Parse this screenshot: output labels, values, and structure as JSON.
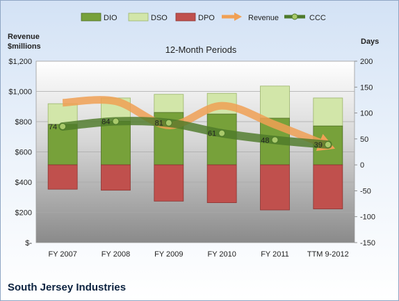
{
  "legend": [
    "DIO",
    "DSO",
    "DPO",
    "Revenue",
    "CCC"
  ],
  "colors": {
    "dio": "#77a13a",
    "dso": "#d2e6a9",
    "dpo": "#c0504d",
    "revenue": "#f0a055",
    "ccc": "#4e7a2a"
  },
  "company": "South Jersey Industries",
  "chart_data": {
    "type": "bar",
    "title": "12-Month Periods",
    "categories": [
      "FY 2007",
      "FY 2008",
      "FY 2009",
      "FY 2010",
      "FY 2011",
      "TTM 9-2012"
    ],
    "left_axis": {
      "label_line1": "Revenue",
      "label_line2": "$millions",
      "ticks": [
        "$-",
        "$200",
        "$400",
        "$600",
        "$800",
        "$1,000",
        "$1,200"
      ],
      "range": [
        0,
        1200
      ]
    },
    "right_axis": {
      "label": "Days",
      "ticks": [
        "-150",
        "-100",
        "-50",
        "0",
        "50",
        "100",
        "150",
        "200"
      ],
      "range": [
        -150,
        200
      ]
    },
    "series": [
      {
        "name": "DIO",
        "axis": "days",
        "values": [
          78,
          84,
          101,
          98,
          90,
          75
        ]
      },
      {
        "name": "DSO",
        "axis": "days",
        "values": [
          40,
          45,
          35,
          40,
          62,
          54
        ]
      },
      {
        "name": "DPO",
        "axis": "days",
        "values": [
          -47,
          -49,
          -70,
          -73,
          -87,
          -85
        ]
      },
      {
        "name": "Revenue",
        "axis": "revenue",
        "values": [
          925,
          935,
          775,
          905,
          780,
          640
        ]
      },
      {
        "name": "CCC",
        "axis": "days",
        "values": [
          74,
          84,
          81,
          61,
          48,
          39
        ]
      }
    ],
    "data_labels": [
      "74",
      "84",
      "81",
      "61",
      "48",
      "39"
    ],
    "grid": true
  }
}
